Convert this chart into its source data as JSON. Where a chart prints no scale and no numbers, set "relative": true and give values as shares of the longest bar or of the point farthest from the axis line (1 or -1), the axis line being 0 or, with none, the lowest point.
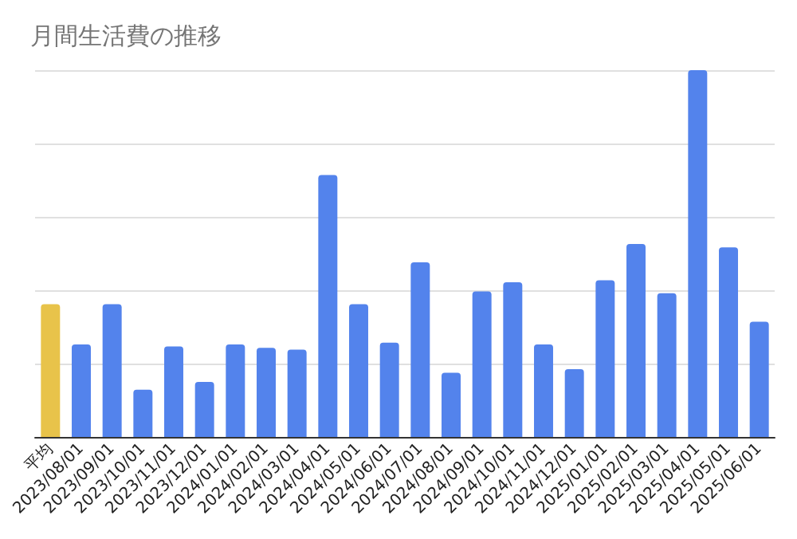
{
  "chart_data": {
    "type": "bar",
    "title": "月間生活費の推移",
    "relative": true,
    "grid": true,
    "categories": [
      "平均",
      "2023/08/01",
      "2023/09/01",
      "2023/10/01",
      "2023/11/01",
      "2023/12/01",
      "2024/01/01",
      "2024/02/01",
      "2024/03/01",
      "2024/04/01",
      "2024/05/01",
      "2024/06/01",
      "2024/07/01",
      "2024/08/01",
      "2024/09/01",
      "2024/10/01",
      "2024/11/01",
      "2024/12/01",
      "2025/01/01",
      "2025/02/01",
      "2025/03/01",
      "2025/04/01",
      "2025/05/01",
      "2025/06/01"
    ],
    "values": [
      0.362,
      0.252,
      0.362,
      0.129,
      0.247,
      0.15,
      0.252,
      0.243,
      0.238,
      0.714,
      0.362,
      0.257,
      0.476,
      0.175,
      0.397,
      0.422,
      0.252,
      0.185,
      0.427,
      0.526,
      0.392,
      1,
      0.517,
      0.314
    ],
    "colors": [
      "#e8c34a",
      "#5383ec",
      "#5383ec",
      "#5383ec",
      "#5383ec",
      "#5383ec",
      "#5383ec",
      "#5383ec",
      "#5383ec",
      "#5383ec",
      "#5383ec",
      "#5383ec",
      "#5383ec",
      "#5383ec",
      "#5383ec",
      "#5383ec",
      "#5383ec",
      "#5383ec",
      "#5383ec",
      "#5383ec",
      "#5383ec",
      "#5383ec",
      "#5383ec",
      "#5383ec"
    ]
  }
}
